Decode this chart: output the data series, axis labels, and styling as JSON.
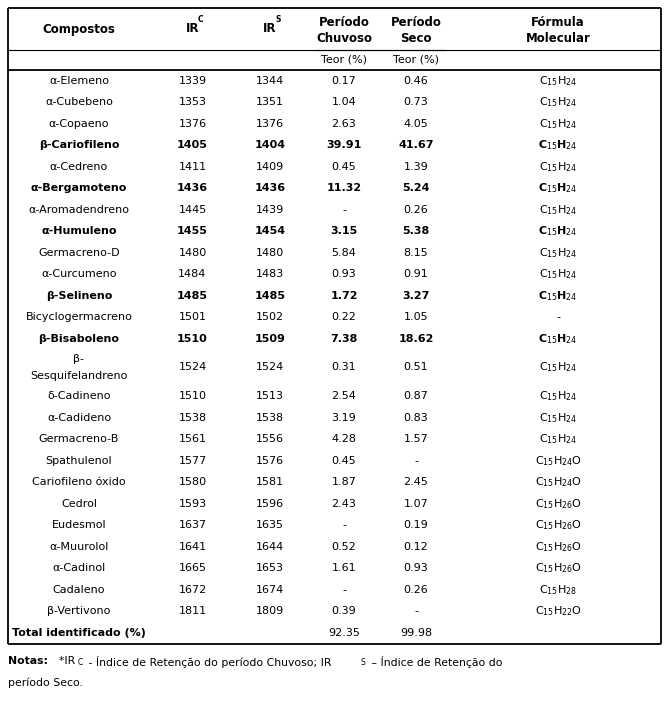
{
  "rows": [
    {
      "compostos": "α-Elemeno",
      "irc": "1339",
      "irs": "1344",
      "chuvoso": "0.17",
      "seco": "0.46",
      "formula": "C$_{15}$H$_{24}$",
      "bold": false,
      "extra_height": false
    },
    {
      "compostos": "α-Cubebeno",
      "irc": "1353",
      "irs": "1351",
      "chuvoso": "1.04",
      "seco": "0.73",
      "formula": "C$_{15}$H$_{24}$",
      "bold": false,
      "extra_height": false
    },
    {
      "compostos": "α-Copaeno",
      "irc": "1376",
      "irs": "1376",
      "chuvoso": "2.63",
      "seco": "4.05",
      "formula": "C$_{15}$H$_{24}$",
      "bold": false,
      "extra_height": false
    },
    {
      "compostos": "β-Cariofileno",
      "irc": "1405",
      "irs": "1404",
      "chuvoso": "39.91",
      "seco": "41.67",
      "formula": "C$_{15}$H$_{24}$",
      "bold": true,
      "extra_height": false
    },
    {
      "compostos": "α-Cedreno",
      "irc": "1411",
      "irs": "1409",
      "chuvoso": "0.45",
      "seco": "1.39",
      "formula": "C$_{15}$H$_{24}$",
      "bold": false,
      "extra_height": false
    },
    {
      "compostos": "α-Bergamoteno",
      "irc": "1436",
      "irs": "1436",
      "chuvoso": "11.32",
      "seco": "5.24",
      "formula": "C$_{15}$H$_{24}$",
      "bold": true,
      "extra_height": false
    },
    {
      "compostos": "α-Aromadendreno",
      "irc": "1445",
      "irs": "1439",
      "chuvoso": "-",
      "seco": "0.26",
      "formula": "C$_{15}$H$_{24}$",
      "bold": false,
      "extra_height": false
    },
    {
      "compostos": "α-Humuleno",
      "irc": "1455",
      "irs": "1454",
      "chuvoso": "3.15",
      "seco": "5.38",
      "formula": "C$_{15}$H$_{24}$",
      "bold": true,
      "extra_height": false
    },
    {
      "compostos": "Germacreno-D",
      "irc": "1480",
      "irs": "1480",
      "chuvoso": "5.84",
      "seco": "8.15",
      "formula": "C$_{15}$H$_{24}$",
      "bold": false,
      "extra_height": false
    },
    {
      "compostos": "α-Curcumeno",
      "irc": "1484",
      "irs": "1483",
      "chuvoso": "0.93",
      "seco": "0.91",
      "formula": "C$_{15}$H$_{24}$",
      "bold": false,
      "extra_height": false
    },
    {
      "compostos": "β-Selineno",
      "irc": "1485",
      "irs": "1485",
      "chuvoso": "1.72",
      "seco": "3.27",
      "formula": "C$_{15}$H$_{24}$",
      "bold": true,
      "extra_height": false
    },
    {
      "compostos": "Bicyclogermacreno",
      "irc": "1501",
      "irs": "1502",
      "chuvoso": "0.22",
      "seco": "1.05",
      "formula": "-",
      "bold": false,
      "extra_height": false
    },
    {
      "compostos": "β-Bisaboleno",
      "irc": "1510",
      "irs": "1509",
      "chuvoso": "7.38",
      "seco": "18.62",
      "formula": "C$_{15}$H$_{24}$",
      "bold": true,
      "extra_height": false
    },
    {
      "compostos": "β-\nSesquifelandreno",
      "irc": "1524",
      "irs": "1524",
      "chuvoso": "0.31",
      "seco": "0.51",
      "formula": "C$_{15}$H$_{24}$",
      "bold": false,
      "extra_height": true
    },
    {
      "compostos": "δ-Cadineno",
      "irc": "1510",
      "irs": "1513",
      "chuvoso": "2.54",
      "seco": "0.87",
      "formula": "C$_{15}$H$_{24}$",
      "bold": false,
      "extra_height": false
    },
    {
      "compostos": "α-Cadideno",
      "irc": "1538",
      "irs": "1538",
      "chuvoso": "3.19",
      "seco": "0.83",
      "formula": "C$_{15}$H$_{24}$",
      "bold": false,
      "extra_height": false
    },
    {
      "compostos": "Germacreno-B",
      "irc": "1561",
      "irs": "1556",
      "chuvoso": "4.28",
      "seco": "1.57",
      "formula": "C$_{15}$H$_{24}$",
      "bold": false,
      "extra_height": false
    },
    {
      "compostos": "Spathulenol",
      "irc": "1577",
      "irs": "1576",
      "chuvoso": "0.45",
      "seco": "-",
      "formula": "C$_{15}$H$_{24}$O",
      "bold": false,
      "extra_height": false
    },
    {
      "compostos": "Cariofileno óxido",
      "irc": "1580",
      "irs": "1581",
      "chuvoso": "1.87",
      "seco": "2.45",
      "formula": "C$_{15}$H$_{24}$O",
      "bold": false,
      "extra_height": false
    },
    {
      "compostos": "Cedrol",
      "irc": "1593",
      "irs": "1596",
      "chuvoso": "2.43",
      "seco": "1.07",
      "formula": "C$_{15}$H$_{26}$O",
      "bold": false,
      "extra_height": false
    },
    {
      "compostos": "Eudesmol",
      "irc": "1637",
      "irs": "1635",
      "chuvoso": "-",
      "seco": "0.19",
      "formula": "C$_{15}$H$_{26}$O",
      "bold": false,
      "extra_height": false
    },
    {
      "compostos": "α-Muurolol",
      "irc": "1641",
      "irs": "1644",
      "chuvoso": "0.52",
      "seco": "0.12",
      "formula": "C$_{15}$H$_{26}$O",
      "bold": false,
      "extra_height": false
    },
    {
      "compostos": "α-Cadinol",
      "irc": "1665",
      "irs": "1653",
      "chuvoso": "1.61",
      "seco": "0.93",
      "formula": "C$_{15}$H$_{26}$O",
      "bold": false,
      "extra_height": false
    },
    {
      "compostos": "Cadaleno",
      "irc": "1672",
      "irs": "1674",
      "chuvoso": "-",
      "seco": "0.26",
      "formula": "C$_{15}$H$_{28}$",
      "bold": false,
      "extra_height": false
    },
    {
      "compostos": "β-Vertivono",
      "irc": "1811",
      "irs": "1809",
      "chuvoso": "0.39",
      "seco": "-",
      "formula": "C$_{15}$H$_{22}$O",
      "bold": false,
      "extra_height": false
    }
  ],
  "total_compostos": "Total identificado (%)",
  "total_chuvoso": "92.35",
  "total_seco": "99.98",
  "background_color": "#ffffff",
  "header_fontsize": 8.5,
  "body_fontsize": 8.0,
  "notes_fontsize": 7.8
}
